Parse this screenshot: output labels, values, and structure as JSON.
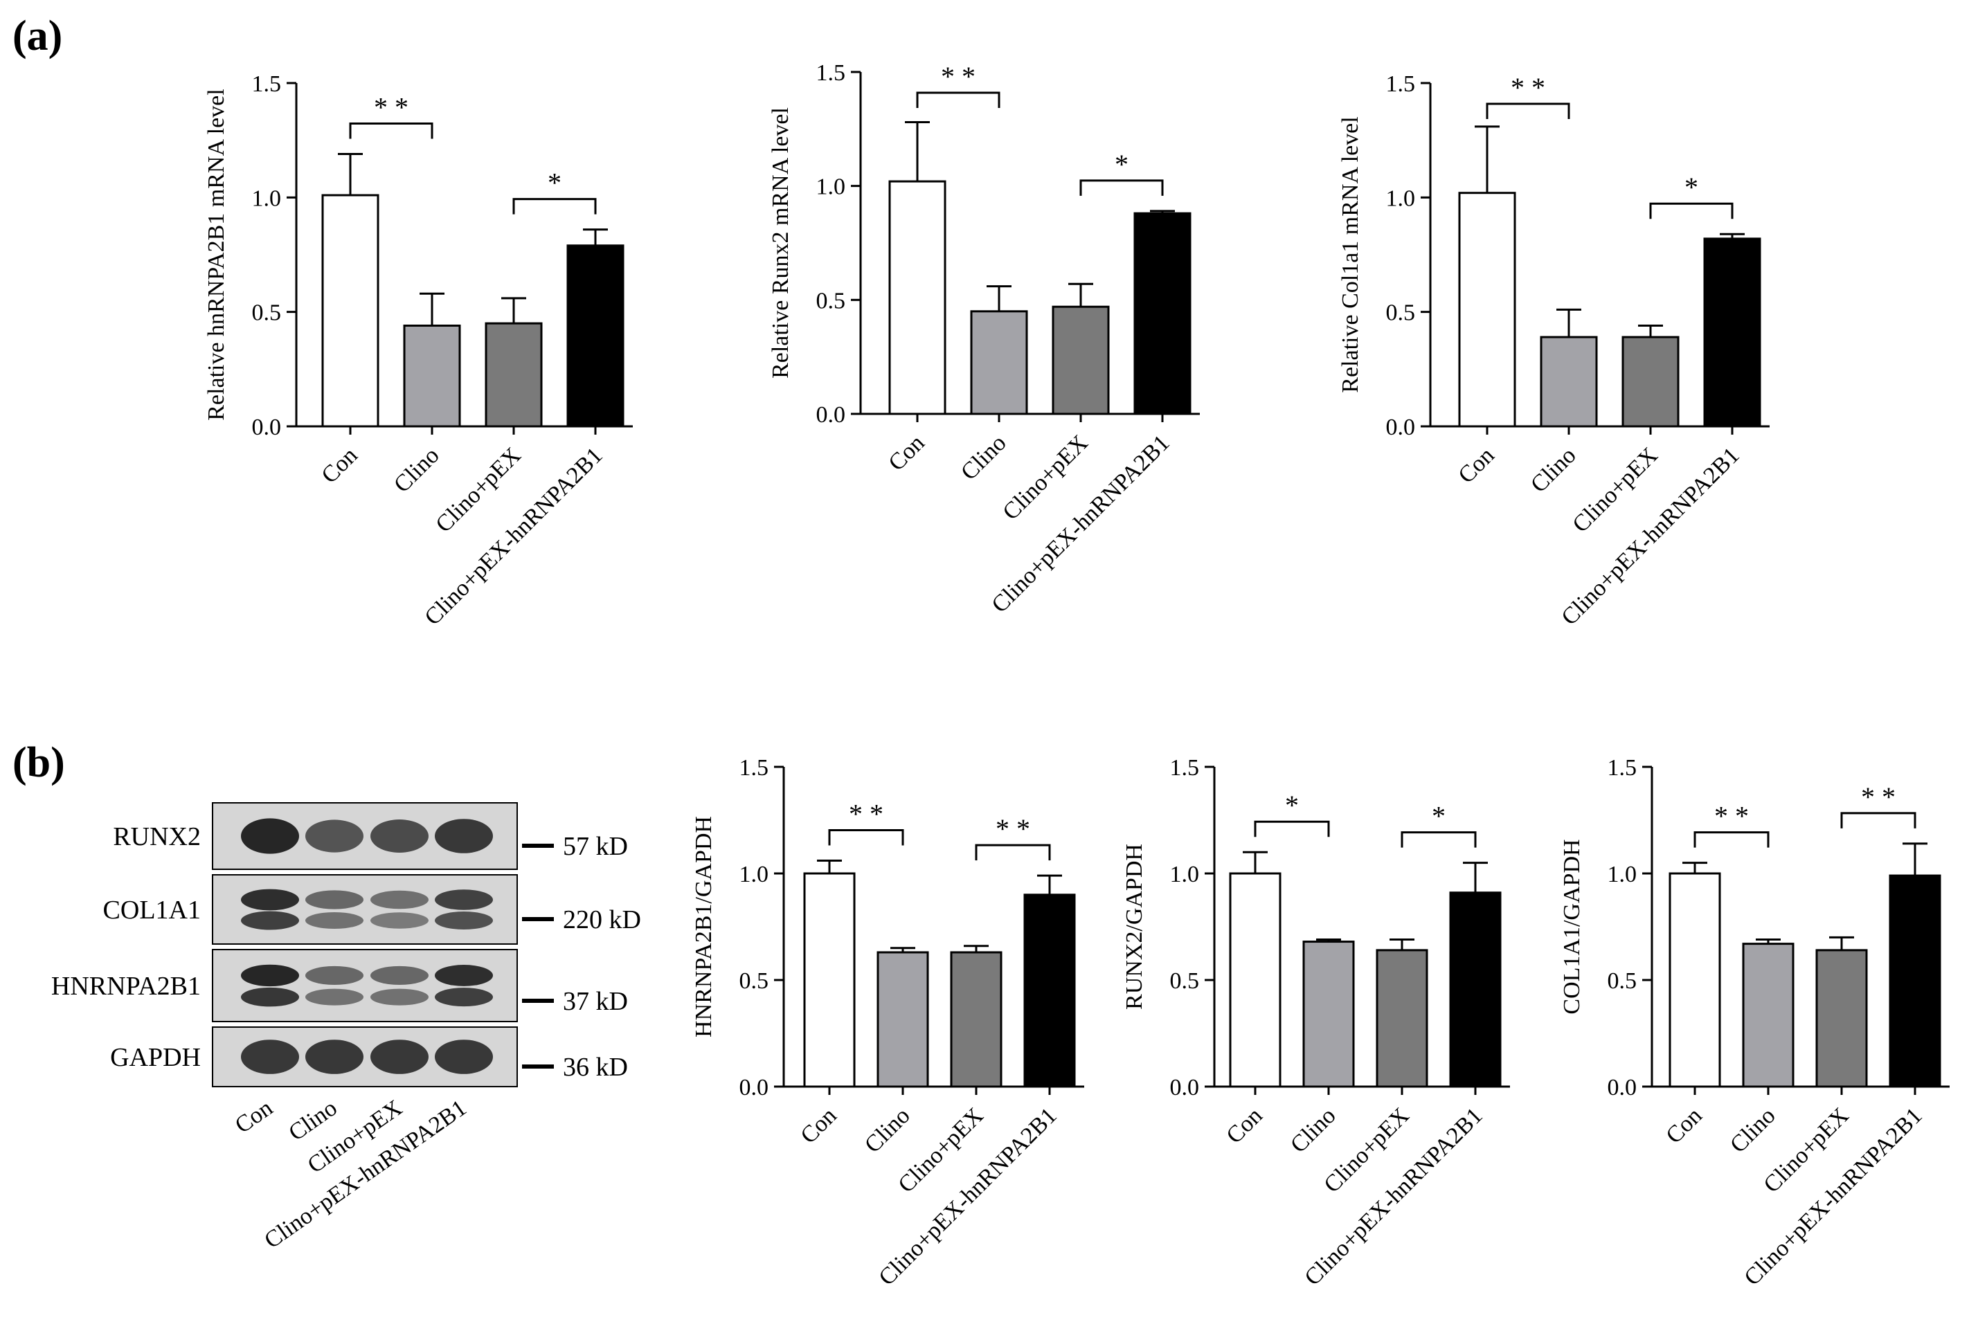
{
  "panels": [
    {
      "letter": "(a)"
    },
    {
      "letter": "(b)"
    }
  ],
  "colors": {
    "Con": "#ffffff",
    "Clino": "#a3a3a8",
    "Clino+pEX": "#7a7a7a",
    "Clino+pEX-hnRNPA2B1": "#000000",
    "blot_background": "#d6d6d6",
    "band": "#1c1c1c"
  },
  "chart_data": [
    {
      "type": "bar",
      "panel": "(a)",
      "categories": [
        "Con",
        "Clino",
        "Clino+pEX",
        "Clino+pEX-hnRNPA2B1"
      ],
      "values": [
        1.01,
        0.44,
        0.45,
        0.79
      ],
      "errors": [
        0.18,
        0.14,
        0.11,
        0.07
      ],
      "ylabel": "Relative hnRNPA2B1 mRNA level",
      "ylim": [
        0,
        1.5
      ],
      "yticks": [
        "0.0",
        "0.5",
        "1.0",
        "1.5"
      ],
      "significance": [
        {
          "from": 0,
          "to": 1,
          "label": "* *"
        },
        {
          "from": 2,
          "to": 3,
          "label": "*"
        }
      ]
    },
    {
      "type": "bar",
      "panel": "(a)",
      "categories": [
        "Con",
        "Clino",
        "Clino+pEX",
        "Clino+pEX-hnRNPA2B1"
      ],
      "values": [
        1.02,
        0.45,
        0.47,
        0.88
      ],
      "errors": [
        0.26,
        0.11,
        0.1,
        0.01
      ],
      "ylabel": "Relative Runx2 mRNA level",
      "ylim": [
        0,
        1.5
      ],
      "yticks": [
        "0.0",
        "0.5",
        "1.0",
        "1.5"
      ],
      "significance": [
        {
          "from": 0,
          "to": 1,
          "label": "* *"
        },
        {
          "from": 2,
          "to": 3,
          "label": "*"
        }
      ]
    },
    {
      "type": "bar",
      "panel": "(a)",
      "categories": [
        "Con",
        "Clino",
        "Clino+pEX",
        "Clino+pEX-hnRNPA2B1"
      ],
      "values": [
        1.02,
        0.39,
        0.39,
        0.82
      ],
      "errors": [
        0.29,
        0.12,
        0.05,
        0.02
      ],
      "ylabel": "Relative Col1a1 mRNA level",
      "ylim": [
        0,
        1.5
      ],
      "yticks": [
        "0.0",
        "0.5",
        "1.0",
        "1.5"
      ],
      "significance": [
        {
          "from": 0,
          "to": 1,
          "label": "* *"
        },
        {
          "from": 2,
          "to": 3,
          "label": "*"
        }
      ]
    },
    {
      "type": "bar",
      "panel": "(b)",
      "categories": [
        "Con",
        "Clino",
        "Clino+pEX",
        "Clino+pEX-hnRNPA2B1"
      ],
      "values": [
        1.0,
        0.63,
        0.63,
        0.9
      ],
      "errors": [
        0.06,
        0.02,
        0.03,
        0.09
      ],
      "ylabel": "HNRNPA2B1/GAPDH",
      "ylim": [
        0,
        1.5
      ],
      "yticks": [
        "0.0",
        "0.5",
        "1.0",
        "1.5"
      ],
      "significance": [
        {
          "from": 0,
          "to": 1,
          "label": "* *"
        },
        {
          "from": 2,
          "to": 3,
          "label": "* *"
        }
      ]
    },
    {
      "type": "bar",
      "panel": "(b)",
      "categories": [
        "Con",
        "Clino",
        "Clino+pEX",
        "Clino+pEX-hnRNPA2B1"
      ],
      "values": [
        1.0,
        0.68,
        0.64,
        0.91
      ],
      "errors": [
        0.1,
        0.01,
        0.05,
        0.14
      ],
      "ylabel": "RUNX2/GAPDH",
      "ylim": [
        0,
        1.5
      ],
      "yticks": [
        "0.0",
        "0.5",
        "1.0",
        "1.5"
      ],
      "significance": [
        {
          "from": 0,
          "to": 1,
          "label": "*"
        },
        {
          "from": 2,
          "to": 3,
          "label": "*"
        }
      ]
    },
    {
      "type": "bar",
      "panel": "(b)",
      "categories": [
        "Con",
        "Clino",
        "Clino+pEX",
        "Clino+pEX-hnRNPA2B1"
      ],
      "values": [
        1.0,
        0.67,
        0.64,
        0.99
      ],
      "errors": [
        0.05,
        0.02,
        0.06,
        0.15
      ],
      "ylabel": "COL1A1/GAPDH",
      "ylim": [
        0,
        1.5
      ],
      "yticks": [
        "0.0",
        "0.5",
        "1.0",
        "1.5"
      ],
      "significance": [
        {
          "from": 0,
          "to": 1,
          "label": "* *"
        },
        {
          "from": 2,
          "to": 3,
          "label": "* *"
        }
      ]
    }
  ],
  "western_blot": {
    "rows": [
      {
        "protein": "RUNX2",
        "marker": "57 kD",
        "bands": 1,
        "intensity": [
          0.95,
          0.7,
          0.75,
          0.85
        ]
      },
      {
        "protein": "COL1A1",
        "marker": "220 kD",
        "bands": 2,
        "intensity": [
          0.9,
          0.6,
          0.55,
          0.8
        ]
      },
      {
        "protein": "HNRNPA2B1",
        "marker": "37 kD",
        "bands": 2,
        "intensity": [
          0.95,
          0.6,
          0.6,
          0.9
        ]
      },
      {
        "protein": "GAPDH",
        "marker": "36 kD",
        "bands": 1,
        "intensity": [
          0.85,
          0.85,
          0.85,
          0.85
        ]
      }
    ],
    "lanes": [
      "Con",
      "Clino",
      "Clino+pEX",
      "Clino+pEX-hnRNPA2B1"
    ]
  }
}
